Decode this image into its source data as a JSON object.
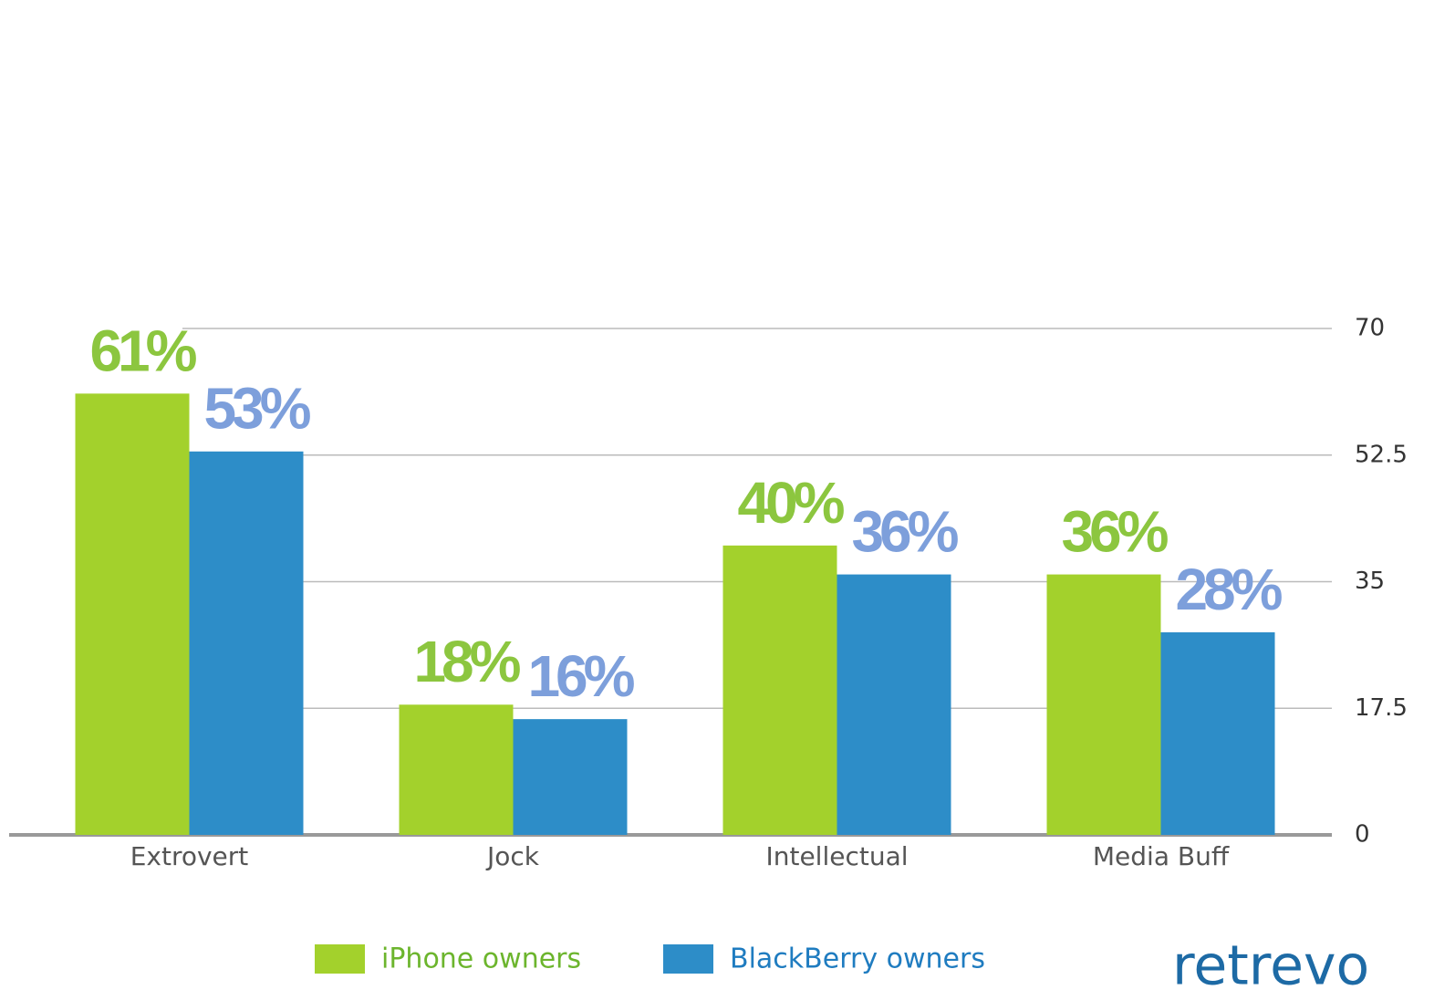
{
  "chart_data": {
    "type": "bar",
    "categories": [
      "Extrovert",
      "Jock",
      "Intellectual",
      "Media Buff"
    ],
    "series": [
      {
        "name": "iPhone owners",
        "color": "#a3d12c",
        "label_color": "#8cc63f",
        "values": [
          61,
          18,
          40,
          36
        ],
        "value_labels": [
          "61%",
          "18%",
          "40%",
          "36%"
        ]
      },
      {
        "name": "BlackBerry owners",
        "color": "#2d8dc8",
        "label_color": "#7d9fdb",
        "values": [
          53,
          16,
          36,
          28
        ],
        "value_labels": [
          "53%",
          "16%",
          "36%",
          "28%"
        ]
      }
    ],
    "ylim": [
      0,
      70
    ],
    "yticks": [
      0,
      17.5,
      35,
      52.5,
      70
    ],
    "grid": true,
    "logo": "retrevo"
  }
}
